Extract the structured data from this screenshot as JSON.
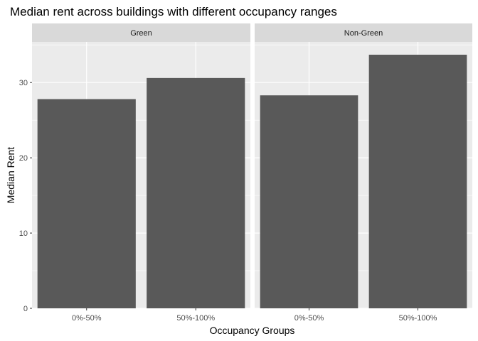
{
  "chart_data": {
    "type": "bar",
    "title": "Median rent across buildings with different occupancy ranges",
    "xlabel": "Occupancy Groups",
    "ylabel": "Median Rent",
    "categories": [
      "0%-50%",
      "50%-100%"
    ],
    "facets": [
      {
        "name": "Green",
        "values": [
          27.8,
          30.6
        ]
      },
      {
        "name": "Non-Green",
        "values": [
          28.3,
          33.7
        ]
      }
    ],
    "ylim": [
      0,
      35.4
    ],
    "yticks": [
      0,
      10,
      20,
      30
    ],
    "grid": true,
    "legend": "none",
    "colors": {
      "bar": "#595959",
      "panel": "#ebebeb",
      "strip": "#d9d9d9",
      "grid": "#ffffff"
    }
  }
}
